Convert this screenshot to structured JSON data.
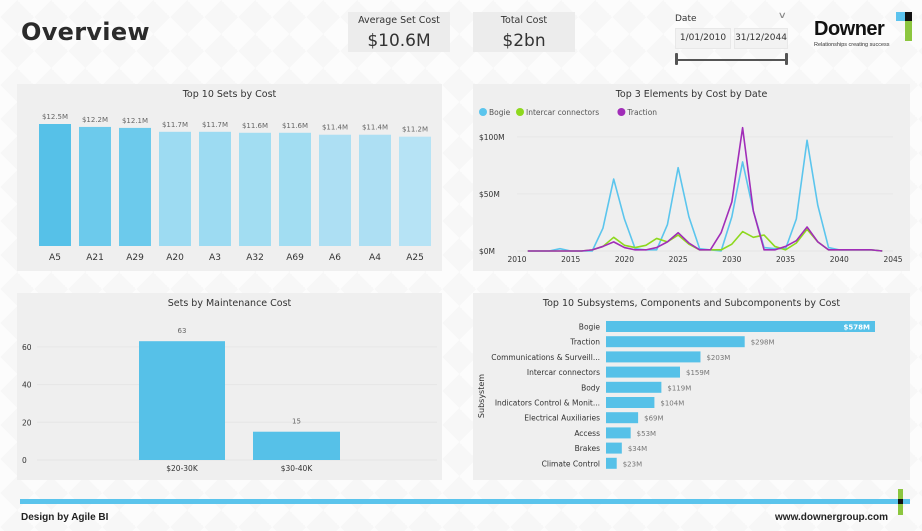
{
  "header": {
    "title": "Overview",
    "kpis": [
      {
        "label": "Average Set Cost",
        "value": "$10.6M"
      },
      {
        "label": "Total Cost",
        "value": "$2bn"
      }
    ],
    "date_filter": {
      "label": "Date",
      "start": "1/01/2010",
      "end": "31/12/2044",
      "range_fraction": [
        0,
        1
      ]
    },
    "logo": {
      "name": "Downer",
      "tagline": "Relationships creating success",
      "colors": {
        "blue": "#5cc3ee",
        "black": "#111111",
        "green": "#8cc63f"
      }
    }
  },
  "footer": {
    "left_text": "Design by Agile BI",
    "right_text": "www.downergroup.com"
  },
  "chart_data": [
    {
      "id": "top10-sets",
      "type": "bar",
      "title": "Top 10 Sets by Cost",
      "categories": [
        "A5",
        "A21",
        "A29",
        "A20",
        "A3",
        "A32",
        "A69",
        "A6",
        "A4",
        "A25"
      ],
      "values": [
        12.5,
        12.2,
        12.1,
        11.7,
        11.7,
        11.6,
        11.6,
        11.4,
        11.4,
        11.2
      ],
      "data_labels": [
        "$12.5M",
        "$12.2M",
        "$12.1M",
        "$11.7M",
        "$11.7M",
        "$11.6M",
        "$11.6M",
        "$11.4M",
        "$11.4M",
        "$11.2M"
      ],
      "colors": [
        "#56c1e8",
        "#6ccaec",
        "#6ccaec",
        "#9ddbf2",
        "#9ddbf2",
        "#a2ddf2",
        "#a2ddf2",
        "#addff3",
        "#addff3",
        "#b6e3f5"
      ],
      "unit": "$M",
      "xlabel": "",
      "ylabel": "",
      "ylim": [
        0,
        12.5
      ]
    },
    {
      "id": "top3-elements",
      "type": "line",
      "title": "Top 3 Elements by Cost by Date",
      "legend": {
        "position": "top-left"
      },
      "x": [
        2011,
        2012,
        2013,
        2014,
        2015,
        2016,
        2017,
        2018,
        2019,
        2020,
        2021,
        2022,
        2023,
        2024,
        2025,
        2026,
        2027,
        2028,
        2029,
        2030,
        2031,
        2032,
        2033,
        2034,
        2035,
        2036,
        2037,
        2038,
        2039,
        2040,
        2041,
        2042,
        2043,
        2044
      ],
      "series": [
        {
          "name": "Bogie",
          "color": "#5bc5ed",
          "values": [
            0,
            0,
            0,
            2,
            0,
            0,
            0,
            20,
            63,
            28,
            2,
            1,
            1,
            23,
            73,
            30,
            2,
            1,
            0,
            30,
            78,
            35,
            3,
            2,
            2,
            28,
            97,
            40,
            3,
            1,
            1,
            1,
            1,
            0
          ]
        },
        {
          "name": "Intercar connectors",
          "color": "#8ed81e",
          "values": [
            0,
            0,
            0,
            0,
            0,
            0,
            1,
            4,
            12,
            5,
            3,
            5,
            11,
            8,
            14,
            6,
            1,
            1,
            1,
            6,
            17,
            12,
            14,
            4,
            1,
            7,
            19,
            8,
            1,
            1,
            1,
            1,
            1,
            0
          ]
        },
        {
          "name": "Traction",
          "color": "#a12db8",
          "values": [
            0,
            0,
            0,
            0,
            0,
            0,
            1,
            4,
            8,
            3,
            1,
            1,
            3,
            8,
            16,
            7,
            1,
            1,
            16,
            43,
            108,
            35,
            1,
            1,
            4,
            9,
            21,
            8,
            1,
            1,
            1,
            1,
            1,
            0
          ]
        }
      ],
      "xlabel": "",
      "ylabel": "",
      "xlim": [
        2010,
        2045
      ],
      "ylim": [
        0,
        120
      ],
      "x_ticks": [
        "2010",
        "2015",
        "2020",
        "2025",
        "2030",
        "2035",
        "2040",
        "2045"
      ],
      "y_ticks": [
        "$0M",
        "$50M",
        "$100M"
      ],
      "y_tick_values": [
        0,
        50,
        100
      ],
      "grid": true
    },
    {
      "id": "maintenance",
      "type": "bar",
      "title": "Sets by Maintenance Cost",
      "categories": [
        "$20-30K",
        "$30-40K"
      ],
      "values": [
        63,
        15
      ],
      "data_labels": [
        "63",
        "15"
      ],
      "color": "#56c1e8",
      "y_ticks": [
        "0",
        "20",
        "40",
        "60"
      ],
      "y_tick_values": [
        0,
        20,
        40,
        60
      ],
      "ylim": [
        0,
        70
      ],
      "xlabel": "",
      "ylabel": "",
      "grid": true
    },
    {
      "id": "top10-subsystems",
      "type": "bar",
      "orientation": "horizontal",
      "title": "Top 10 Subsystems, Components and Subcomponents by Cost",
      "categories": [
        "Bogie",
        "Traction",
        "Communications & Surveill...",
        "Intercar connectors",
        "Body",
        "Indicators Control & Monit...",
        "Electrical Auxiliaries",
        "Access",
        "Brakes",
        "Climate Control"
      ],
      "values": [
        578,
        298,
        203,
        159,
        119,
        104,
        69,
        53,
        34,
        23
      ],
      "data_labels": [
        "$578M",
        "$298M",
        "$203M",
        "$159M",
        "$119M",
        "$104M",
        "$69M",
        "$53M",
        "$34M",
        "$23M"
      ],
      "color": "#56c1e8",
      "ylabel": "Subsystem",
      "xlabel": "",
      "xlim": [
        0,
        578
      ]
    }
  ]
}
